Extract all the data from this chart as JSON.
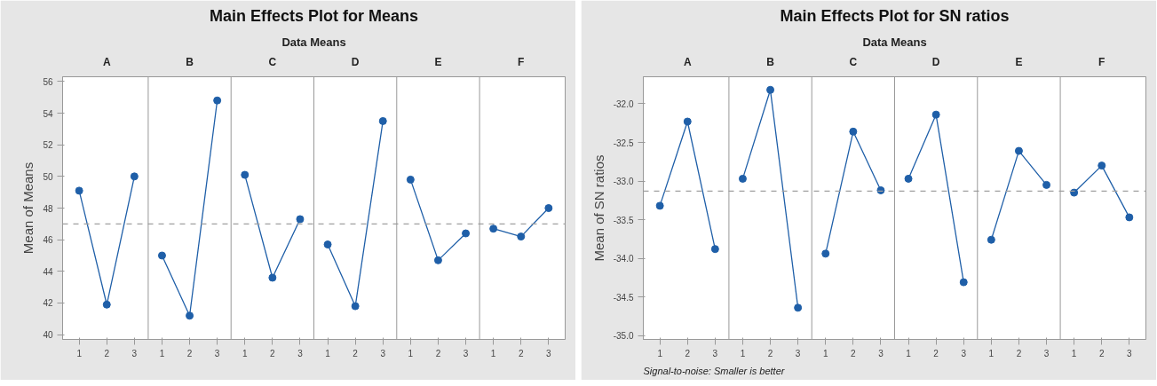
{
  "chart_data": [
    {
      "type": "line",
      "title": "Main Effects Plot for Means",
      "subtitle": "Data Means",
      "ylabel": "Mean of Means",
      "categories": [
        "1",
        "2",
        "3",
        "1",
        "2",
        "3",
        "1",
        "2",
        "3",
        "1",
        "2",
        "3",
        "1",
        "2",
        "3",
        "1",
        "2",
        "3"
      ],
      "marker": "circle",
      "line_style": "solid",
      "grid": false,
      "ylim": [
        39.7,
        56.3
      ],
      "yticks": [
        40,
        42,
        44,
        46,
        48,
        50,
        52,
        54,
        56
      ],
      "annotations": [
        "A",
        "B",
        "C",
        "D",
        "E",
        "F"
      ],
      "series": [
        {
          "color": "#1f5fa8",
          "values": [
            49.1,
            41.9,
            50.0,
            null,
            null,
            null,
            null,
            null,
            null,
            null,
            null,
            null,
            null,
            null,
            null,
            null,
            null,
            null
          ]
        },
        {
          "color": "#1f5fa8",
          "values": [
            null,
            null,
            null,
            45.0,
            41.2,
            54.8,
            null,
            null,
            null,
            null,
            null,
            null,
            null,
            null,
            null,
            null,
            null,
            null
          ]
        },
        {
          "color": "#1f5fa8",
          "values": [
            null,
            null,
            null,
            null,
            null,
            null,
            50.1,
            43.6,
            47.3,
            null,
            null,
            null,
            null,
            null,
            null,
            null,
            null,
            null
          ]
        },
        {
          "color": "#1f5fa8",
          "values": [
            null,
            null,
            null,
            null,
            null,
            null,
            null,
            null,
            null,
            45.7,
            41.8,
            53.5,
            null,
            null,
            null,
            null,
            null,
            null
          ]
        },
        {
          "color": "#1f5fa8",
          "values": [
            null,
            null,
            null,
            null,
            null,
            null,
            null,
            null,
            null,
            null,
            null,
            null,
            49.8,
            44.7,
            46.4,
            null,
            null,
            null
          ]
        },
        {
          "color": "#1f5fa8",
          "values": [
            null,
            null,
            null,
            null,
            null,
            null,
            null,
            null,
            null,
            null,
            null,
            null,
            null,
            null,
            null,
            46.7,
            46.2,
            48.0
          ]
        }
      ],
      "ref_lines": [
        {
          "axis": "y",
          "value": 47.0,
          "color": "#a0a0a0",
          "line_style": "dashed"
        }
      ]
    },
    {
      "type": "line",
      "title": "Main Effects Plot for SN ratios",
      "subtitle": "Data Means",
      "ylabel": "Mean of SN ratios",
      "categories": [
        "1",
        "2",
        "3",
        "1",
        "2",
        "3",
        "1",
        "2",
        "3",
        "1",
        "2",
        "3",
        "1",
        "2",
        "3",
        "1",
        "2",
        "3"
      ],
      "marker": "circle",
      "line_style": "solid",
      "grid": false,
      "ylim": [
        -35.05,
        -31.65
      ],
      "yticks": [
        {
          "value": -35,
          "label": "-35.0"
        },
        {
          "value": -34.5,
          "label": "-34.5"
        },
        {
          "value": -34,
          "label": "-34.0"
        },
        {
          "value": -33.5,
          "label": "-33.5"
        },
        {
          "value": -33,
          "label": "-33.0"
        },
        {
          "value": -32.5,
          "label": "-32.5"
        },
        {
          "value": -32,
          "label": "-32.0"
        }
      ],
      "annotations": [
        "A",
        "B",
        "C",
        "D",
        "E",
        "F",
        "Signal-to-noise: Smaller is better"
      ],
      "series": [
        {
          "color": "#1f5fa8",
          "values": [
            -33.32,
            -32.23,
            -33.88,
            null,
            null,
            null,
            null,
            null,
            null,
            null,
            null,
            null,
            null,
            null,
            null,
            null,
            null,
            null
          ]
        },
        {
          "color": "#1f5fa8",
          "values": [
            null,
            null,
            null,
            -32.97,
            -31.82,
            -34.64,
            null,
            null,
            null,
            null,
            null,
            null,
            null,
            null,
            null,
            null,
            null,
            null
          ]
        },
        {
          "color": "#1f5fa8",
          "values": [
            null,
            null,
            null,
            null,
            null,
            null,
            -33.94,
            -32.36,
            -33.12,
            null,
            null,
            null,
            null,
            null,
            null,
            null,
            null,
            null
          ]
        },
        {
          "color": "#1f5fa8",
          "values": [
            null,
            null,
            null,
            null,
            null,
            null,
            null,
            null,
            null,
            -32.97,
            -32.14,
            -34.31,
            null,
            null,
            null,
            null,
            null,
            null
          ]
        },
        {
          "color": "#1f5fa8",
          "values": [
            null,
            null,
            null,
            null,
            null,
            null,
            null,
            null,
            null,
            null,
            null,
            null,
            -33.76,
            -32.61,
            -33.05,
            null,
            null,
            null
          ]
        },
        {
          "color": "#1f5fa8",
          "values": [
            null,
            null,
            null,
            null,
            null,
            null,
            null,
            null,
            null,
            null,
            null,
            null,
            null,
            null,
            null,
            -33.15,
            -32.8,
            -33.47
          ]
        }
      ],
      "ref_lines": [
        {
          "axis": "y",
          "value": -33.13,
          "color": "#a0a0a0",
          "line_style": "dashed"
        }
      ]
    }
  ]
}
